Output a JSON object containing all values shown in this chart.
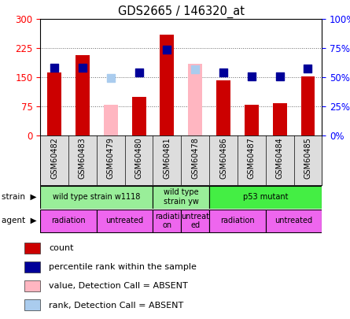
{
  "title": "GDS2665 / 146320_at",
  "samples": [
    "GSM60482",
    "GSM60483",
    "GSM60479",
    "GSM60480",
    "GSM60481",
    "GSM60478",
    "GSM60486",
    "GSM60487",
    "GSM60484",
    "GSM60485"
  ],
  "count_values": [
    163,
    208,
    null,
    100,
    260,
    null,
    143,
    80,
    83,
    152
  ],
  "count_absent": [
    null,
    null,
    80,
    null,
    null,
    185,
    null,
    null,
    null,
    null
  ],
  "rank_values": [
    175,
    175,
    null,
    162,
    222,
    null,
    162,
    152,
    152,
    172
  ],
  "rank_absent": [
    null,
    null,
    148,
    null,
    null,
    170,
    null,
    null,
    null,
    null
  ],
  "left_ylim": [
    0,
    300
  ],
  "left_yticks": [
    0,
    75,
    150,
    225,
    300
  ],
  "right_yticks": [
    0,
    75,
    150,
    225,
    300
  ],
  "right_labels": [
    "0%",
    "25%",
    "50%",
    "75%",
    "100%"
  ],
  "strain_groups": [
    {
      "label": "wild type strain w1118",
      "start": 0,
      "end": 4,
      "color": "#99EE99"
    },
    {
      "label": "wild type\nstrain yw",
      "start": 4,
      "end": 6,
      "color": "#99EE99"
    },
    {
      "label": "p53 mutant",
      "start": 6,
      "end": 10,
      "color": "#44EE44"
    }
  ],
  "agent_groups": [
    {
      "label": "radiation",
      "start": 0,
      "end": 2,
      "color": "#EE66EE"
    },
    {
      "label": "untreated",
      "start": 2,
      "end": 4,
      "color": "#EE66EE"
    },
    {
      "label": "radiati\non",
      "start": 4,
      "end": 5,
      "color": "#EE66EE"
    },
    {
      "label": "untreat\ned",
      "start": 5,
      "end": 6,
      "color": "#EE66EE"
    },
    {
      "label": "radiation",
      "start": 6,
      "end": 8,
      "color": "#EE66EE"
    },
    {
      "label": "untreated",
      "start": 8,
      "end": 10,
      "color": "#EE66EE"
    }
  ],
  "bar_color_present": "#CC0000",
  "bar_color_absent": "#FFB6C1",
  "dot_color_present": "#000099",
  "dot_color_absent": "#AACCEE",
  "bar_width": 0.5,
  "dot_size": 45,
  "legend_items": [
    {
      "color": "#CC0000",
      "label": "count"
    },
    {
      "color": "#000099",
      "label": "percentile rank within the sample"
    },
    {
      "color": "#FFB6C1",
      "label": "value, Detection Call = ABSENT"
    },
    {
      "color": "#AACCEE",
      "label": "rank, Detection Call = ABSENT"
    }
  ]
}
